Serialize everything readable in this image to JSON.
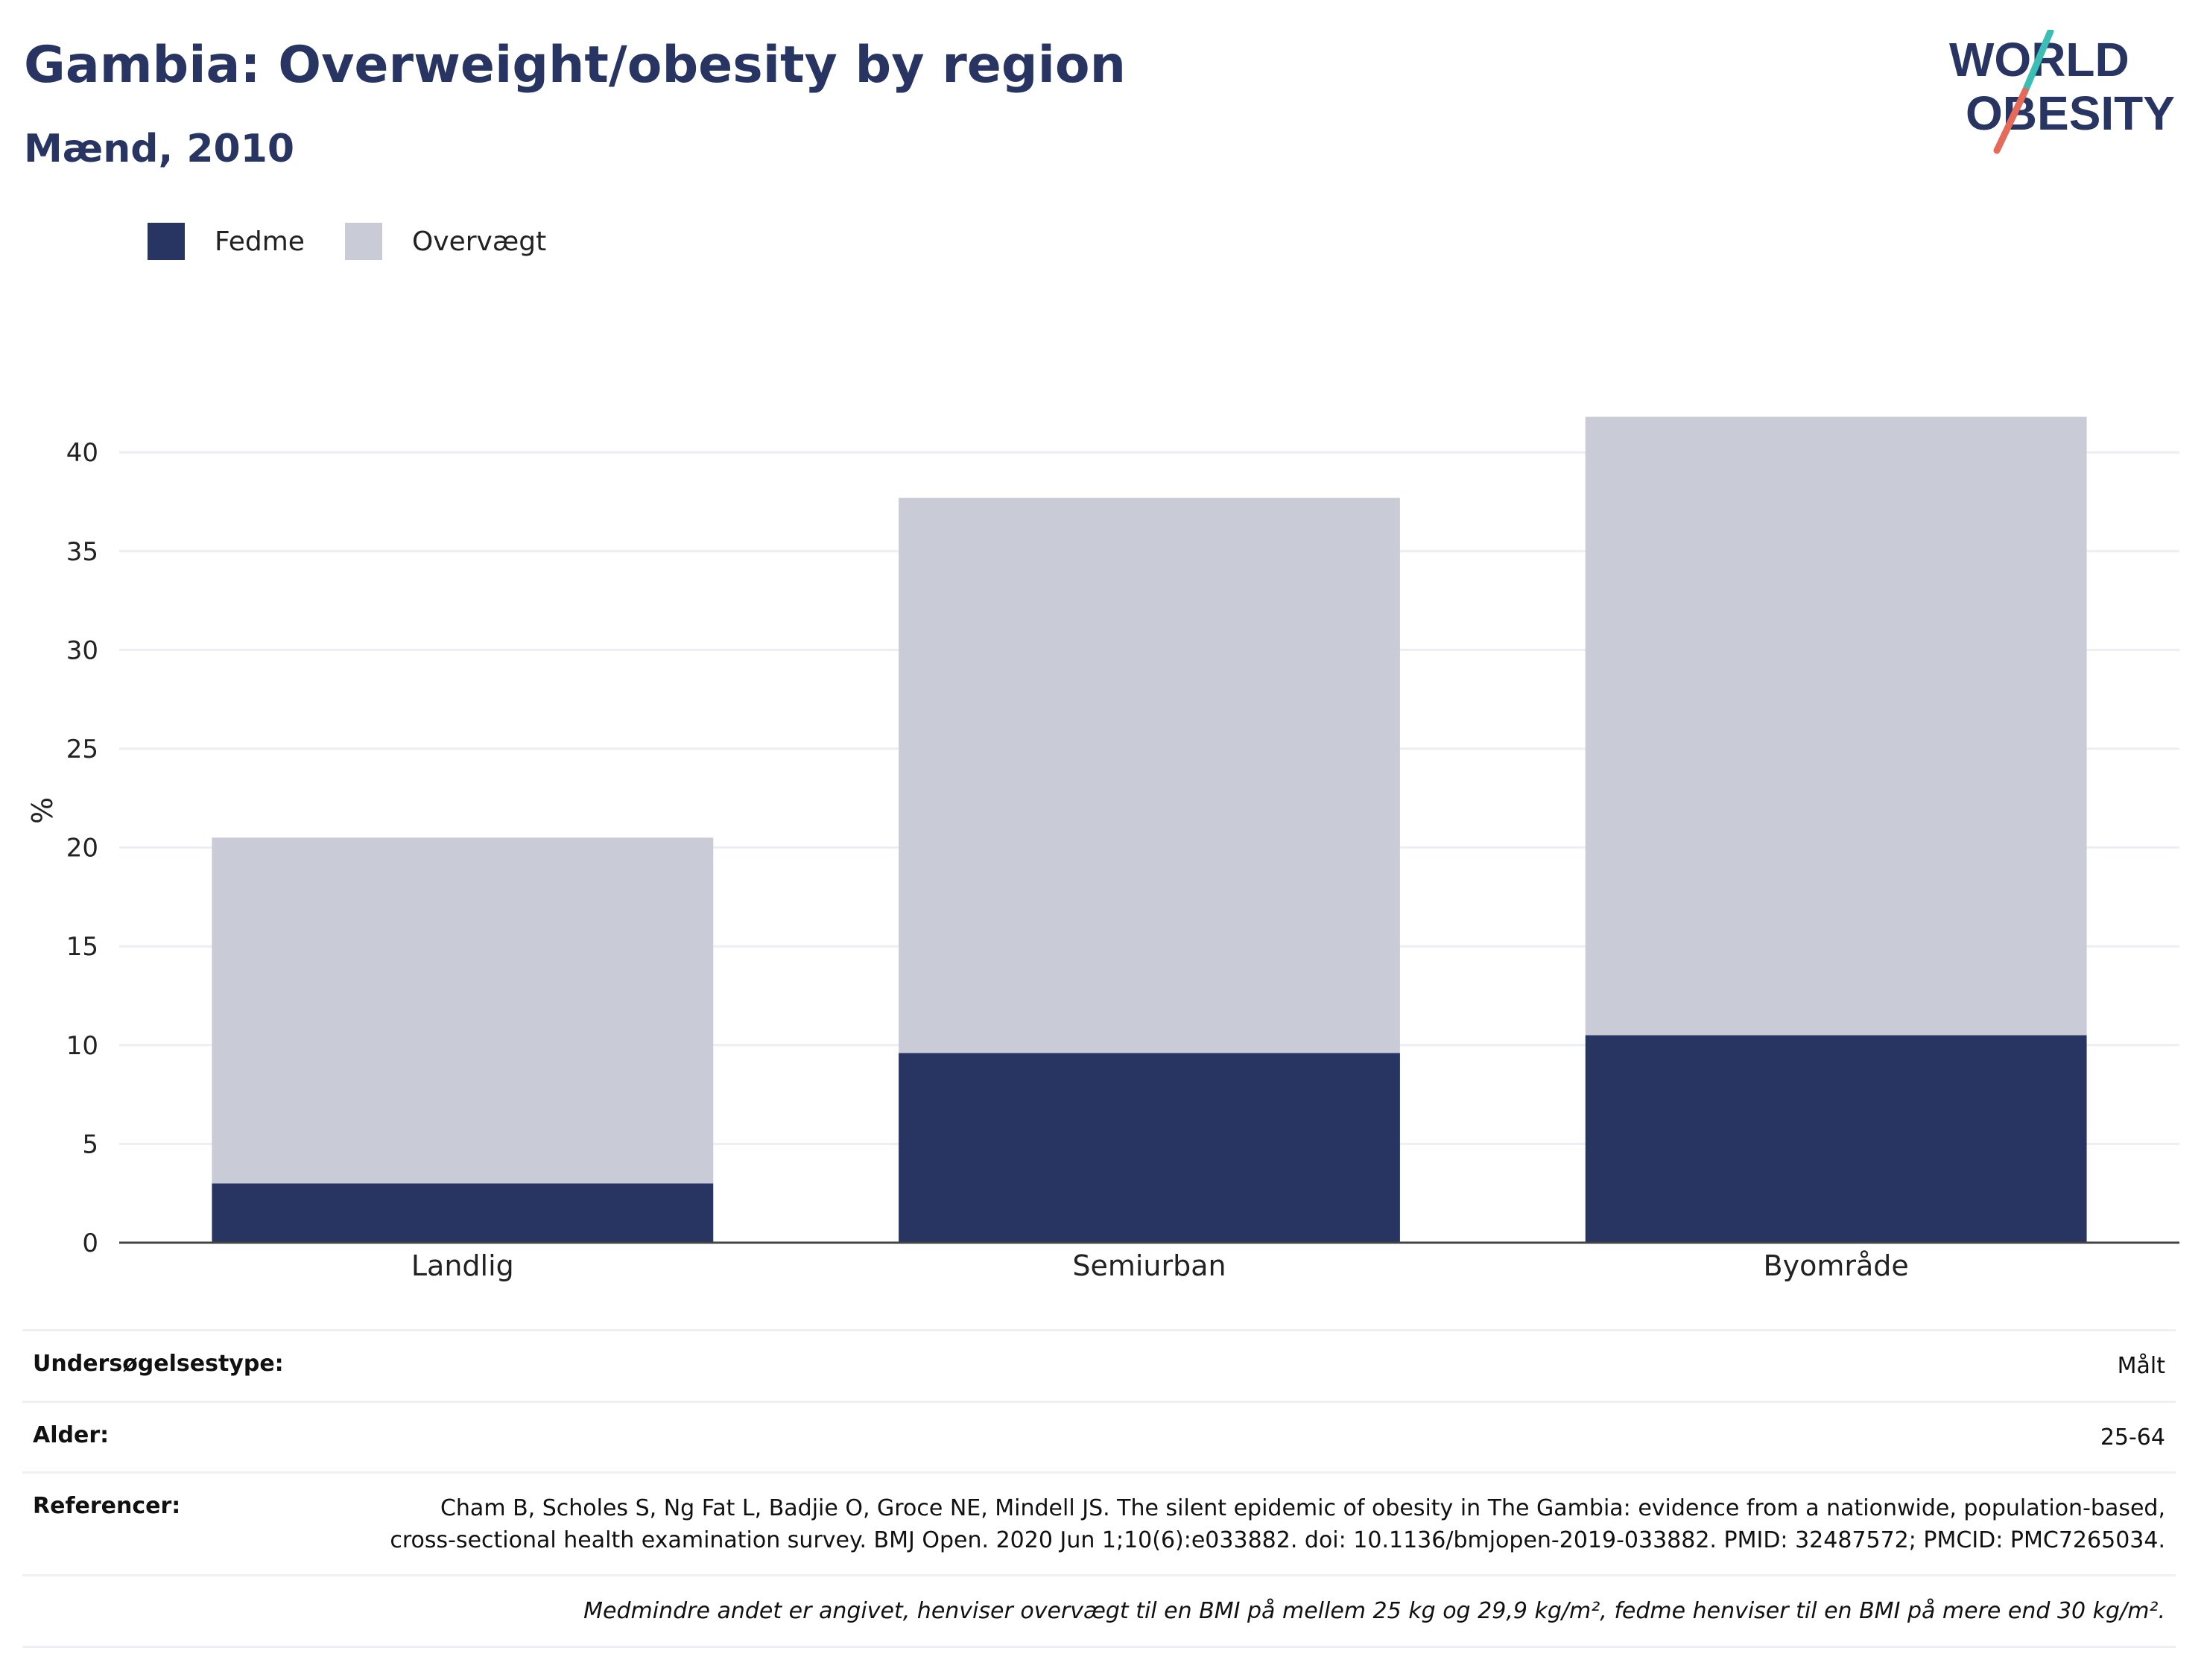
{
  "header": {
    "title": "Gambia: Overweight/obesity by region",
    "subtitle": "Mænd, 2010"
  },
  "logo": {
    "line1": "WORLD",
    "line2": "OBESITY",
    "slash_colors": [
      "#3bbfb4",
      "#e66a5a"
    ]
  },
  "colors": {
    "fedme": "#283562",
    "overvaegt": "#c9cbd6",
    "title": "#283562",
    "grid": "#eceef4",
    "axis": "#444444"
  },
  "legend": [
    {
      "label": "Fedme",
      "color": "#283562"
    },
    {
      "label": "Overvægt",
      "color": "#c9cbd6"
    }
  ],
  "chart_data": {
    "type": "bar",
    "stacked": true,
    "categories": [
      "Landlig",
      "Semiurban",
      "Byområde"
    ],
    "series": [
      {
        "name": "Fedme",
        "values": [
          3.0,
          9.6,
          10.5
        ]
      },
      {
        "name": "Overvægt",
        "values": [
          17.5,
          28.1,
          31.3
        ]
      }
    ],
    "ylabel": "%",
    "ylim": [
      0,
      42
    ],
    "yticks": [
      0,
      5,
      10,
      15,
      20,
      25,
      30,
      35,
      40
    ],
    "grid": true,
    "legend_position": "top-left"
  },
  "info": {
    "survey_type_label": "Undersøgelsestype:",
    "survey_type_value": "Målt",
    "age_label": "Alder:",
    "age_value": "25-64",
    "references_label": "Referencer:",
    "references_value": "Cham B, Scholes S, Ng Fat L, Badjie O, Groce NE, Mindell JS. The silent epidemic of obesity in The Gambia: evidence from a nationwide, population-based, cross-sectional health examination survey. BMJ Open. 2020 Jun 1;10(6):e033882. doi: 10.1136/bmjopen-2019-033882. PMID: 32487572; PMCID: PMC7265034.",
    "note": "Medmindre andet er angivet, henviser overvægt til en BMI på mellem 25 kg og 29,9 kg/m², fedme henviser til en BMI på mere end 30 kg/m²."
  }
}
